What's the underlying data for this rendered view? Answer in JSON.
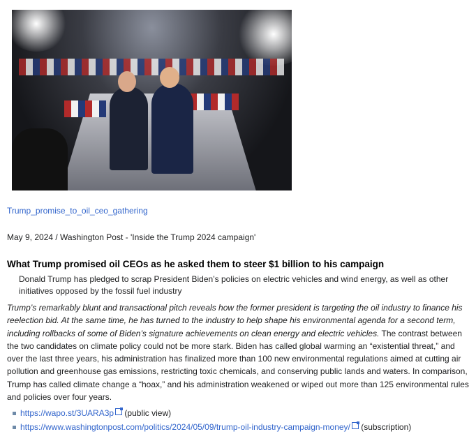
{
  "image": {
    "alt": "Trump shaking hands on stage before a crowd"
  },
  "caption_link": "Trump_promise_to_oil_ceo_gathering",
  "dateline": "May 9, 2024 / Washington Post - 'Inside the Trump 2024 campaign'",
  "headline": "What Trump promised oil CEOs as he asked them to steer $1 billion to his campaign",
  "subhead": "Donald Trump has pledged to scrap President Biden’s policies on electric vehicles and wind energy, as well as other initiatives opposed by the fossil fuel industry",
  "body_italic": "Trump’s remarkably blunt and transactional pitch reveals how the former president is targeting the oil industry to finance his reelection bid. At the same time, he has turned to the industry to help shape his environmental agenda for a second term, including rollbacks of some of Biden’s signature achievements on clean energy and electric vehicles.",
  "body_plain": " The contrast between the two candidates on climate policy could not be more stark. Biden has called global warming an “existential threat,” and over the last three years, his administration has finalized more than 100 new environmental regulations aimed at cutting air pollution and greenhouse gas emissions, restricting toxic chemicals, and conserving public lands and waters. In comparison, Trump has called climate change a “hoax,” and his administration weakened or wiped out more than 125 environmental rules and policies over four years.",
  "links": [
    {
      "url": "https://wapo.st/3UARA3p",
      "note": "(public view)"
    },
    {
      "url": "https://www.washingtonpost.com/politics/2024/05/09/trump-oil-industry-campaign-money/",
      "note": "(subscription)"
    }
  ]
}
